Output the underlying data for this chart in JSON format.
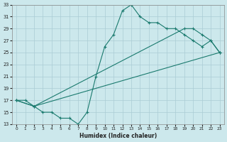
{
  "title": "",
  "xlabel": "Humidex (Indice chaleur)",
  "bg_color": "#cce8ec",
  "grid_color": "#aaccd4",
  "line_color": "#1a7a6e",
  "xlim": [
    -0.5,
    23.5
  ],
  "ylim": [
    13,
    33
  ],
  "xticks": [
    0,
    1,
    2,
    3,
    4,
    5,
    6,
    7,
    8,
    9,
    10,
    11,
    12,
    13,
    14,
    15,
    16,
    17,
    18,
    19,
    20,
    21,
    22,
    23
  ],
  "yticks": [
    13,
    15,
    17,
    19,
    21,
    23,
    25,
    27,
    29,
    31,
    33
  ],
  "line1_x": [
    0,
    1,
    2,
    3,
    4,
    5,
    6,
    7,
    8,
    9,
    10,
    11,
    12,
    13,
    14,
    15,
    16,
    17,
    18,
    19,
    20,
    21,
    22,
    23
  ],
  "line1_y": [
    17,
    17,
    16,
    15,
    15,
    14,
    14,
    13,
    15,
    21,
    26,
    28,
    32,
    33,
    31,
    30,
    30,
    29,
    29,
    28,
    27,
    26,
    27,
    25
  ],
  "line2_x": [
    0,
    2,
    23
  ],
  "line2_y": [
    17,
    16,
    25
  ],
  "line3_x": [
    0,
    2,
    19,
    20,
    21,
    22,
    23
  ],
  "line3_y": [
    17,
    16,
    29,
    29,
    28,
    27,
    25
  ]
}
